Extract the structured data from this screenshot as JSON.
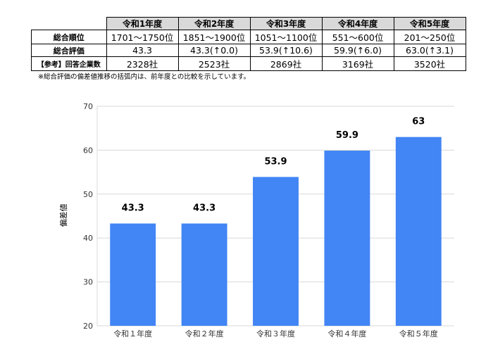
{
  "table": {
    "headers": [
      "令和1年度",
      "令和2年度",
      "令和3年度",
      "令和4年度",
      "令和5年度"
    ],
    "rows": [
      {
        "label": "総合順位",
        "values": [
          "1701～1750位",
          "1851～1900位",
          "1051～1100位",
          "551～600位",
          "201～250位"
        ]
      },
      {
        "label": "総合評価",
        "values": [
          "43.3",
          "43.3(↑0.0)",
          "53.9(↑10.6)",
          "59.9(↑6.0)",
          "63.0(↑3.1)"
        ]
      },
      {
        "label": "【参考】回答企業数",
        "values": [
          "2328社",
          "2523社",
          "2869社",
          "3169社",
          "3520社"
        ]
      }
    ]
  },
  "note": "※総合評価の偏差値推移の括弧内は、前年度との比較を示しています。",
  "chart_data": {
    "type": "bar",
    "categories": [
      "令和１年度",
      "令和２年度",
      "令和３年度",
      "令和４年度",
      "令和５年度"
    ],
    "values": [
      43.3,
      43.3,
      53.9,
      59.9,
      63
    ],
    "data_labels": [
      "43.3",
      "43.3",
      "53.9",
      "59.9",
      "63"
    ],
    "title": "",
    "xlabel": "",
    "ylabel": "偏差値",
    "ylim": [
      20,
      70
    ],
    "yticks": [
      20,
      30,
      40,
      50,
      60,
      70
    ],
    "grid": true,
    "bar_color": "#4285f4",
    "grid_color": "#d9d9d9"
  }
}
